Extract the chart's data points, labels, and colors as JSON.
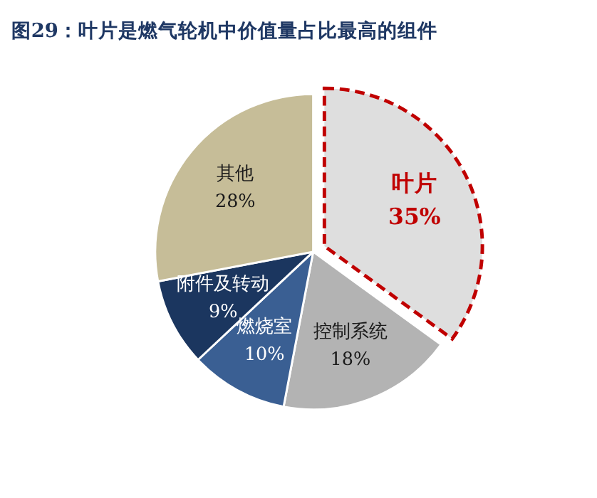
{
  "chart_data": {
    "type": "pie",
    "title": "图29：叶片是燃气轮机中价值量占比最高的组件",
    "categories": [
      "叶片",
      "控制系统",
      "燃烧室",
      "附件及转动",
      "其他"
    ],
    "values": [
      35,
      18,
      10,
      9,
      28
    ],
    "value_labels": [
      "35%",
      "18%",
      "10%",
      "9%",
      "28%"
    ],
    "colors": [
      "#dedede",
      "#b3b3b3",
      "#3a5f93",
      "#1b365f",
      "#c6bd98"
    ],
    "legend": false
  }
}
